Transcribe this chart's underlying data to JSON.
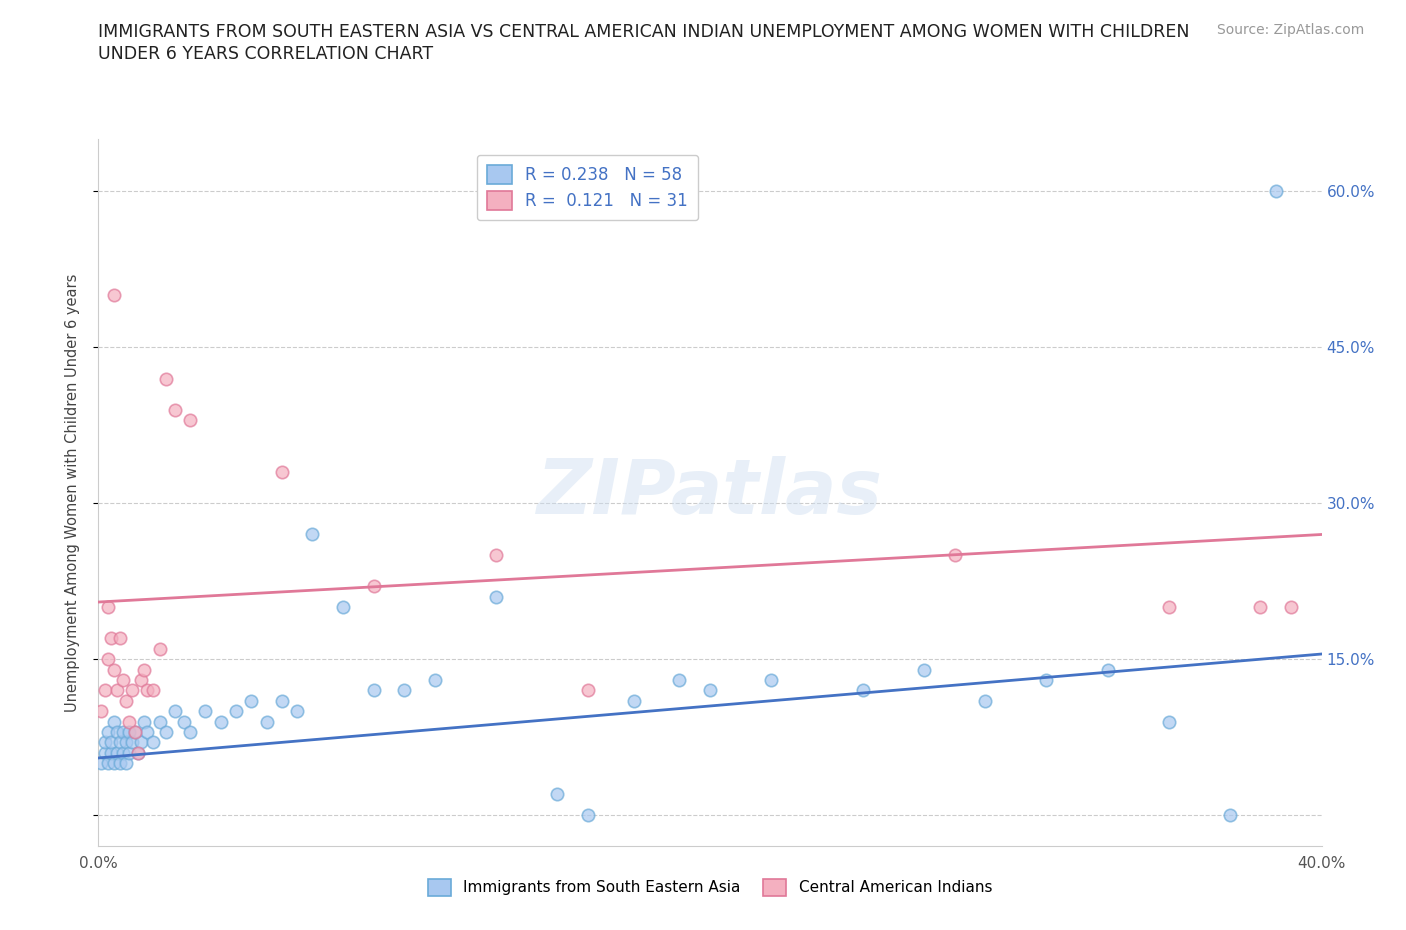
{
  "title_line1": "IMMIGRANTS FROM SOUTH EASTERN ASIA VS CENTRAL AMERICAN INDIAN UNEMPLOYMENT AMONG WOMEN WITH CHILDREN",
  "title_line2": "UNDER 6 YEARS CORRELATION CHART",
  "source": "Source: ZipAtlas.com",
  "ylabel": "Unemployment Among Women with Children Under 6 years",
  "watermark": "ZIPatlas",
  "xlim": [
    0.0,
    0.4
  ],
  "ylim": [
    -0.03,
    0.65
  ],
  "yticks": [
    0.0,
    0.15,
    0.3,
    0.45,
    0.6
  ],
  "ytick_labels": [
    "",
    "15.0%",
    "30.0%",
    "45.0%",
    "60.0%"
  ],
  "xticks": [
    0.0,
    0.1,
    0.2,
    0.3,
    0.4
  ],
  "xtick_labels": [
    "0.0%",
    "",
    "",
    "",
    "40.0%"
  ],
  "legend_top": [
    {
      "label": "R = 0.238   N = 58",
      "facecolor": "#a8c8f0",
      "edgecolor": "#6aaad8"
    },
    {
      "label": "R =  0.121   N = 31",
      "facecolor": "#f4b0c0",
      "edgecolor": "#e07898"
    }
  ],
  "legend_bottom": [
    {
      "label": "Immigrants from South Eastern Asia",
      "facecolor": "#a8c8f0",
      "edgecolor": "#6aaad8"
    },
    {
      "label": "Central American Indians",
      "facecolor": "#f4b0c0",
      "edgecolor": "#e07898"
    }
  ],
  "blue_scatter": {
    "x": [
      0.001,
      0.002,
      0.002,
      0.003,
      0.003,
      0.004,
      0.004,
      0.005,
      0.005,
      0.006,
      0.006,
      0.007,
      0.007,
      0.008,
      0.008,
      0.009,
      0.009,
      0.01,
      0.01,
      0.011,
      0.012,
      0.013,
      0.014,
      0.015,
      0.016,
      0.018,
      0.02,
      0.022,
      0.025,
      0.028,
      0.03,
      0.035,
      0.04,
      0.045,
      0.05,
      0.055,
      0.06,
      0.065,
      0.07,
      0.08,
      0.09,
      0.1,
      0.11,
      0.13,
      0.15,
      0.16,
      0.175,
      0.19,
      0.2,
      0.22,
      0.25,
      0.27,
      0.29,
      0.31,
      0.33,
      0.35,
      0.37,
      0.385
    ],
    "y": [
      0.05,
      0.06,
      0.07,
      0.05,
      0.08,
      0.06,
      0.07,
      0.05,
      0.09,
      0.06,
      0.08,
      0.05,
      0.07,
      0.06,
      0.08,
      0.05,
      0.07,
      0.06,
      0.08,
      0.07,
      0.08,
      0.06,
      0.07,
      0.09,
      0.08,
      0.07,
      0.09,
      0.08,
      0.1,
      0.09,
      0.08,
      0.1,
      0.09,
      0.1,
      0.11,
      0.09,
      0.11,
      0.1,
      0.27,
      0.2,
      0.12,
      0.12,
      0.13,
      0.21,
      0.02,
      0.0,
      0.11,
      0.13,
      0.12,
      0.13,
      0.12,
      0.14,
      0.11,
      0.13,
      0.14,
      0.09,
      0.0,
      0.6
    ]
  },
  "pink_scatter": {
    "x": [
      0.001,
      0.002,
      0.003,
      0.003,
      0.004,
      0.005,
      0.005,
      0.006,
      0.007,
      0.008,
      0.009,
      0.01,
      0.011,
      0.012,
      0.013,
      0.014,
      0.015,
      0.016,
      0.018,
      0.02,
      0.022,
      0.025,
      0.03,
      0.06,
      0.09,
      0.13,
      0.16,
      0.28,
      0.35,
      0.38,
      0.39
    ],
    "y": [
      0.1,
      0.12,
      0.15,
      0.2,
      0.17,
      0.5,
      0.14,
      0.12,
      0.17,
      0.13,
      0.11,
      0.09,
      0.12,
      0.08,
      0.06,
      0.13,
      0.14,
      0.12,
      0.12,
      0.16,
      0.42,
      0.39,
      0.38,
      0.33,
      0.22,
      0.25,
      0.12,
      0.25,
      0.2,
      0.2,
      0.2
    ]
  },
  "blue_line_endpoints": [
    [
      0.0,
      0.055
    ],
    [
      0.4,
      0.155
    ]
  ],
  "pink_line_endpoints": [
    [
      0.0,
      0.205
    ],
    [
      0.4,
      0.27
    ]
  ],
  "blue_color": "#a8c8f0",
  "blue_edge": "#6aaad8",
  "pink_color": "#f4b0c0",
  "pink_edge": "#e07898",
  "blue_line_color": "#4472c4",
  "pink_line_color": "#e07898",
  "grid_color": "#cccccc",
  "background_color": "#ffffff",
  "scatter_size": 80,
  "scatter_alpha": 0.7,
  "scatter_linewidth": 1.2,
  "title_fontsize": 12.5,
  "label_fontsize": 10.5,
  "tick_fontsize": 11,
  "source_fontsize": 10,
  "legend_fontsize": 12,
  "watermark_fontsize": 55,
  "watermark_color": "#ccddf0",
  "watermark_alpha": 0.45
}
